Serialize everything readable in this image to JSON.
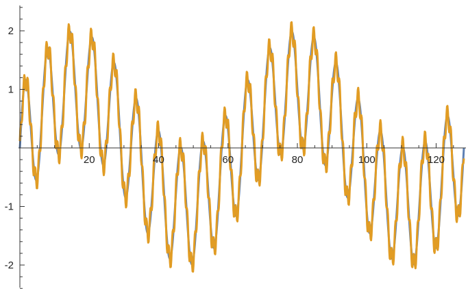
{
  "chart_data": {
    "type": "line",
    "title": "",
    "xlabel": "",
    "ylabel": "",
    "xlim": [
      0,
      128
    ],
    "ylim": [
      -2.45,
      2.45
    ],
    "x_ticks": [
      {
        "value": 20,
        "label": "20"
      },
      {
        "value": 40,
        "label": "40"
      },
      {
        "value": 60,
        "label": "60"
      },
      {
        "value": 80,
        "label": "80"
      },
      {
        "value": 100,
        "label": "100"
      },
      {
        "value": 120,
        "label": "120"
      }
    ],
    "y_ticks": [
      {
        "value": 2,
        "label": "2"
      },
      {
        "value": 1,
        "label": "1"
      },
      {
        "value": -1,
        "label": "-1"
      },
      {
        "value": -2,
        "label": "-2"
      }
    ],
    "x_minor_step": 5,
    "y_minor_step": 0.2,
    "grid": false,
    "series": [
      {
        "color": "#5e81b5",
        "stroke": 3,
        "samples": 1000,
        "formula": "sin(2*pi*x/6.4) + 1.0*sin(2*pi*x/64)*sin(2*pi*x/6.4)... approximated",
        "components": [
          {
            "amplitude": 1.0,
            "period": 6.4
          },
          {
            "amplitude": 1.0,
            "period": 64
          }
        ]
      },
      {
        "color": "#e19c24",
        "stroke": 3,
        "samples": 1000,
        "components": [
          {
            "amplitude": 1.0,
            "period": 6.4
          },
          {
            "amplitude": 1.0,
            "period": 64
          },
          {
            "amplitude": 0.18,
            "period": 1.07
          }
        ]
      }
    ]
  }
}
